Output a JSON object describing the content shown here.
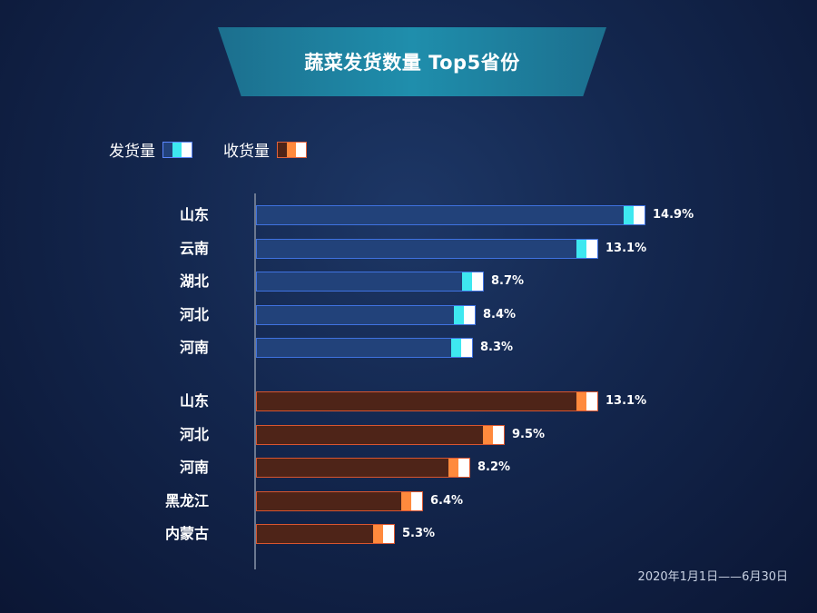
{
  "title": "蔬菜发货数量 Top5省份",
  "legend": {
    "ship_label": "发货量",
    "recv_label": "收货量"
  },
  "colors": {
    "ship_fill": "#22427a",
    "ship_border": "#3f72e0",
    "ship_cap": "#3ee8f0",
    "recv_fill": "#4e2418",
    "recv_border": "#d8552f",
    "recv_cap": "#ff8a3d",
    "cap_white": "#ffffff"
  },
  "footer": "2020年1月1日——6月30日",
  "chart_data": {
    "type": "bar",
    "orientation": "horizontal",
    "unit": "%",
    "series": [
      {
        "name": "发货量",
        "categories": [
          "山东",
          "云南",
          "湖北",
          "河北",
          "河南"
        ],
        "values": [
          14.9,
          13.1,
          8.7,
          8.4,
          8.3
        ],
        "labels": [
          "14.9%",
          "13.1%",
          "8.7%",
          "8.4%",
          "8.3%"
        ]
      },
      {
        "name": "收货量",
        "categories": [
          "山东",
          "河北",
          "河南",
          "黑龙江",
          "内蒙古"
        ],
        "values": [
          13.1,
          9.5,
          8.2,
          6.4,
          5.3
        ],
        "labels": [
          "13.1%",
          "9.5%",
          "8.2%",
          "6.4%",
          "5.3%"
        ]
      }
    ]
  }
}
